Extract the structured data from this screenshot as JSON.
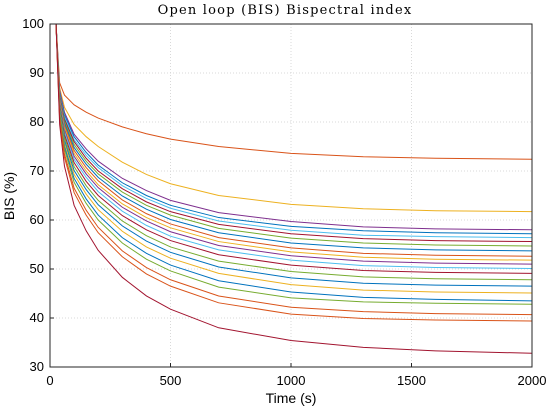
{
  "chart_data": {
    "type": "line",
    "title": "Open loop (BIS) Bispectral index",
    "xlabel": "Time (s)",
    "ylabel": "BIS (%)",
    "xlim": [
      0,
      2000
    ],
    "ylim": [
      30,
      100
    ],
    "xticks": [
      0,
      500,
      1000,
      1500,
      2000
    ],
    "yticks": [
      30,
      40,
      50,
      60,
      70,
      80,
      90,
      100
    ],
    "grid": true,
    "x": [
      0,
      25,
      40,
      60,
      100,
      150,
      200,
      300,
      400,
      500,
      700,
      1000,
      1300,
      1600,
      2000
    ],
    "series": [
      {
        "color": "#d95319",
        "values": [
          100,
          100,
          88.0,
          85.5,
          83.5,
          82.0,
          80.8,
          79.0,
          77.6,
          76.5,
          75.0,
          73.6,
          72.9,
          72.6,
          72.4
        ]
      },
      {
        "color": "#edb120",
        "values": [
          100,
          100,
          87.0,
          83.0,
          79.5,
          77.0,
          75.0,
          71.8,
          69.3,
          67.4,
          65.0,
          63.2,
          62.3,
          61.9,
          61.7
        ]
      },
      {
        "color": "#7e2f8e",
        "values": [
          100,
          100,
          86.5,
          82.0,
          77.5,
          74.5,
          72.0,
          68.5,
          66.0,
          64.0,
          61.5,
          59.7,
          58.6,
          58.2,
          58.0
        ]
      },
      {
        "color": "#0072bd",
        "values": [
          100,
          100,
          86.0,
          81.5,
          77.0,
          73.8,
          71.2,
          67.6,
          65.0,
          63.0,
          60.5,
          58.7,
          57.8,
          57.4,
          57.2
        ]
      },
      {
        "color": "#4dbeee",
        "values": [
          100,
          100,
          85.8,
          81.0,
          76.4,
          73.2,
          70.7,
          67.0,
          64.4,
          62.4,
          59.8,
          57.9,
          56.9,
          56.6,
          56.4
        ]
      },
      {
        "color": "#a2142f",
        "values": [
          100,
          100,
          85.5,
          80.6,
          76.0,
          72.6,
          70.0,
          66.4,
          63.7,
          61.7,
          59.1,
          57.2,
          56.2,
          55.8,
          55.6
        ]
      },
      {
        "color": "#77ac30",
        "values": [
          100,
          100,
          85.2,
          80.2,
          75.4,
          72.0,
          69.4,
          65.7,
          63.0,
          61.0,
          58.3,
          56.3,
          55.3,
          54.9,
          54.7
        ]
      },
      {
        "color": "#0072bd",
        "values": [
          100,
          100,
          85.0,
          79.8,
          74.8,
          71.4,
          68.7,
          64.9,
          62.2,
          60.1,
          57.4,
          55.3,
          54.3,
          53.9,
          53.7
        ]
      },
      {
        "color": "#d95319",
        "values": [
          100,
          100,
          84.8,
          79.3,
          74.2,
          70.7,
          68.0,
          64.1,
          61.3,
          59.2,
          56.4,
          54.3,
          53.2,
          52.8,
          52.6
        ]
      },
      {
        "color": "#edb120",
        "values": [
          100,
          100,
          84.5,
          78.9,
          73.6,
          70.0,
          67.2,
          63.3,
          60.5,
          58.4,
          55.6,
          53.5,
          52.4,
          52.0,
          51.8
        ]
      },
      {
        "color": "#7e2f8e",
        "values": [
          100,
          100,
          84.2,
          78.4,
          73.0,
          69.4,
          66.6,
          62.6,
          59.8,
          57.6,
          54.8,
          52.7,
          51.6,
          51.2,
          51.0
        ]
      },
      {
        "color": "#4dbeee",
        "values": [
          100,
          100,
          84.0,
          78.0,
          72.4,
          68.7,
          65.8,
          61.8,
          58.9,
          56.7,
          53.9,
          51.8,
          50.7,
          50.3,
          50.1
        ]
      },
      {
        "color": "#a2142f",
        "values": [
          100,
          100,
          83.6,
          77.4,
          71.7,
          67.9,
          65.0,
          60.9,
          58.0,
          55.8,
          52.9,
          50.8,
          49.7,
          49.3,
          49.1
        ]
      },
      {
        "color": "#77ac30",
        "values": [
          100,
          100,
          83.2,
          76.8,
          70.9,
          67.0,
          64.0,
          59.8,
          56.8,
          54.5,
          51.6,
          49.5,
          48.4,
          48.0,
          47.8
        ]
      },
      {
        "color": "#0072bd",
        "values": [
          100,
          100,
          82.8,
          76.2,
          70.1,
          66.2,
          63.1,
          58.8,
          55.7,
          53.4,
          50.4,
          48.2,
          47.1,
          46.7,
          46.5
        ]
      },
      {
        "color": "#edb120",
        "values": [
          100,
          100,
          82.4,
          75.6,
          69.3,
          65.3,
          62.1,
          57.7,
          54.5,
          52.2,
          49.1,
          46.8,
          45.7,
          45.3,
          45.1
        ]
      },
      {
        "color": "#0072bd",
        "values": [
          100,
          100,
          82.0,
          75.0,
          68.5,
          64.3,
          61.0,
          56.4,
          53.2,
          50.8,
          47.6,
          45.3,
          44.2,
          43.8,
          43.5
        ]
      },
      {
        "color": "#77ac30",
        "values": [
          100,
          100,
          81.6,
          74.4,
          67.7,
          63.4,
          60.0,
          55.3,
          52.0,
          49.6,
          46.3,
          44.1,
          43.3,
          43.0,
          42.8
        ]
      },
      {
        "color": "#d95319",
        "values": [
          100,
          100,
          81.0,
          73.5,
          66.5,
          62.0,
          58.5,
          53.7,
          50.3,
          47.8,
          44.5,
          42.2,
          41.3,
          40.9,
          40.7
        ]
      },
      {
        "color": "#d95319",
        "values": [
          100,
          100,
          80.5,
          72.8,
          65.6,
          61.0,
          57.4,
          52.5,
          49.0,
          46.5,
          43.1,
          40.8,
          39.9,
          39.6,
          39.4
        ]
      },
      {
        "color": "#a2142f",
        "values": [
          100,
          100,
          79.5,
          71.0,
          63.0,
          57.8,
          53.8,
          48.3,
          44.5,
          41.8,
          38.0,
          35.4,
          34.0,
          33.3,
          32.8
        ]
      }
    ]
  }
}
